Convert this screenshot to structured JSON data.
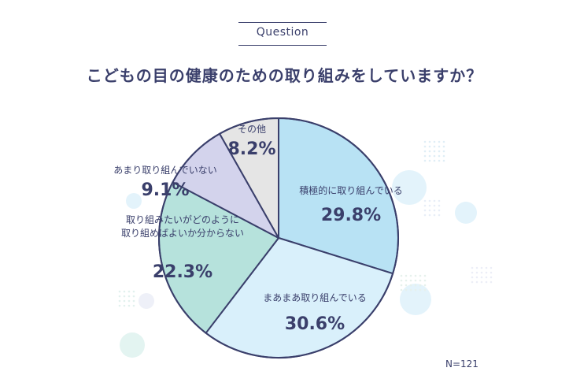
{
  "header": {
    "question_label": "Question",
    "title": "こどもの目の健康のための取り組みをしていますか？"
  },
  "note": "N=121",
  "chart_data": {
    "type": "pie",
    "title": "こどもの目の健康のための取り組みをしていますか？",
    "slices": [
      {
        "label": "積極的に取り組んでいる",
        "value": 29.8,
        "value_text": "29.8%",
        "color": "#b8e2f4"
      },
      {
        "label": "まあまあ取り組んでいる",
        "value": 30.6,
        "value_text": "30.6%",
        "color": "#d9f0fb"
      },
      {
        "label": "取り組みたいがどのように取り組めばよいか分からない",
        "label_lines": [
          "取り組みたいがどのように",
          "取り組めばよいか分からない"
        ],
        "value": 22.3,
        "value_text": "22.3%",
        "color": "#b6e2dc"
      },
      {
        "label": "あまり取り組んでいない",
        "value": 9.1,
        "value_text": "9.1%",
        "color": "#d3d3ec"
      },
      {
        "label": "その他",
        "value": 8.2,
        "value_text": "8.2%",
        "color": "#e5e5e5"
      }
    ],
    "stroke_color": "#3a3f6b"
  }
}
